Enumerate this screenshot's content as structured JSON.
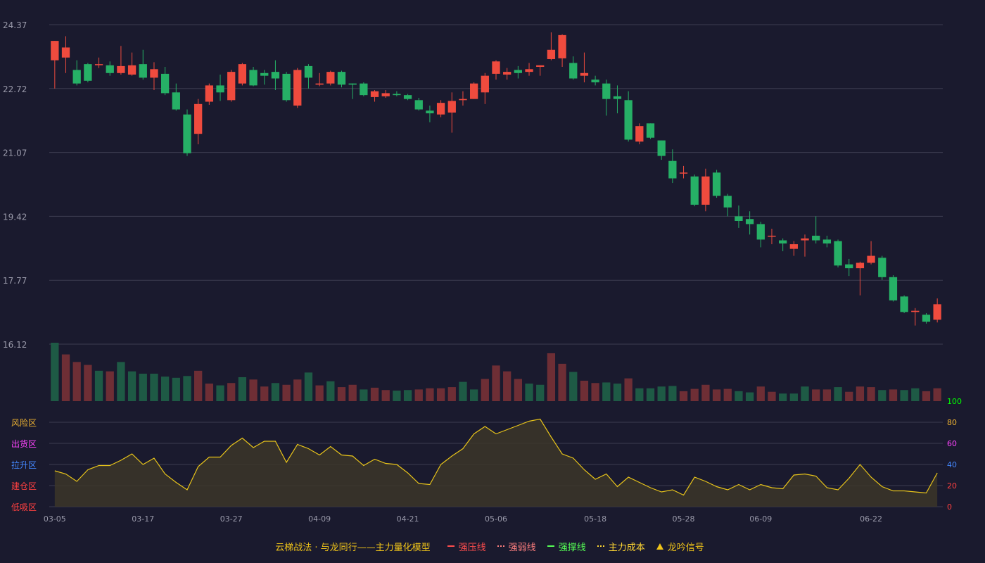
{
  "chart_data": {
    "type": "candlestick",
    "price_axis": {
      "ticks": [
        "24.37",
        "22.72",
        "21.07",
        "19.42",
        "17.77",
        "16.12"
      ],
      "range": [
        16.12,
        24.37
      ]
    },
    "x_ticks": [
      "03-05",
      "03-17",
      "03-27",
      "04-09",
      "04-21",
      "05-06",
      "05-18",
      "05-28",
      "06-09",
      "06-22"
    ],
    "dates": [
      "03-05",
      "03-06",
      "03-07",
      "03-10",
      "03-11",
      "03-12",
      "03-13",
      "03-14",
      "03-17",
      "03-18",
      "03-19",
      "03-20",
      "03-21",
      "03-24",
      "03-25",
      "03-26",
      "03-27",
      "03-28",
      "03-31",
      "04-01",
      "04-02",
      "04-03",
      "04-07",
      "04-08",
      "04-09",
      "04-10",
      "04-11",
      "04-14",
      "04-15",
      "04-16",
      "04-17",
      "04-18",
      "04-21",
      "04-22",
      "04-23",
      "04-24",
      "04-25",
      "04-28",
      "04-29",
      "04-30",
      "05-06",
      "05-07",
      "05-08",
      "05-09",
      "05-12",
      "05-13",
      "05-14",
      "05-15",
      "05-16",
      "05-18",
      "05-19",
      "05-20",
      "05-21",
      "05-22",
      "05-23",
      "05-26",
      "05-27",
      "05-28",
      "05-29",
      "05-30",
      "06-03",
      "06-04",
      "06-05",
      "06-06",
      "06-09",
      "06-10",
      "06-11",
      "06-12",
      "06-13",
      "06-16",
      "06-17",
      "06-18",
      "06-19",
      "06-20",
      "06-22",
      "06-23",
      "06-24",
      "06-25",
      "06-26",
      "06-27",
      "06-30"
    ],
    "ohlc": [
      [
        23.45,
        23.95,
        22.72,
        23.95
      ],
      [
        23.52,
        23.78,
        23.12,
        24.07
      ],
      [
        23.2,
        22.85,
        22.8,
        23.45
      ],
      [
        23.35,
        22.92,
        22.88,
        23.38
      ],
      [
        23.35,
        23.35,
        23.25,
        23.52
      ],
      [
        23.32,
        23.12,
        23.05,
        23.42
      ],
      [
        23.12,
        23.3,
        23.08,
        23.82
      ],
      [
        23.08,
        23.32,
        23.05,
        23.65
      ],
      [
        23.35,
        23.0,
        22.95,
        23.72
      ],
      [
        23.0,
        23.22,
        22.68,
        23.4
      ],
      [
        23.1,
        22.6,
        22.55,
        23.28
      ],
      [
        22.62,
        22.18,
        22.15,
        22.85
      ],
      [
        22.05,
        21.05,
        20.98,
        22.18
      ],
      [
        21.55,
        22.32,
        21.28,
        22.45
      ],
      [
        22.38,
        22.8,
        22.3,
        22.85
      ],
      [
        22.8,
        22.62,
        22.4,
        23.08
      ],
      [
        22.42,
        23.15,
        22.38,
        23.2
      ],
      [
        22.85,
        23.35,
        22.8,
        23.38
      ],
      [
        23.2,
        22.8,
        22.78,
        23.28
      ],
      [
        23.12,
        23.05,
        22.82,
        23.2
      ],
      [
        23.15,
        22.98,
        22.68,
        23.45
      ],
      [
        23.1,
        22.42,
        22.38,
        23.15
      ],
      [
        22.28,
        23.2,
        22.22,
        23.25
      ],
      [
        23.3,
        23.0,
        22.72,
        23.35
      ],
      [
        22.82,
        22.85,
        22.78,
        23.12
      ],
      [
        22.85,
        23.15,
        22.8,
        23.18
      ],
      [
        23.15,
        22.82,
        22.75,
        23.18
      ],
      [
        22.85,
        22.82,
        22.45,
        22.85
      ],
      [
        22.85,
        22.55,
        22.52,
        22.88
      ],
      [
        22.5,
        22.65,
        22.38,
        22.68
      ],
      [
        22.52,
        22.6,
        22.48,
        22.68
      ],
      [
        22.58,
        22.55,
        22.52,
        22.65
      ],
      [
        22.55,
        22.45,
        22.42,
        22.58
      ],
      [
        22.42,
        22.18,
        22.15,
        22.48
      ],
      [
        22.15,
        22.08,
        21.85,
        22.28
      ],
      [
        22.05,
        22.35,
        21.98,
        22.42
      ],
      [
        22.1,
        22.4,
        21.58,
        22.62
      ],
      [
        22.42,
        22.45,
        22.28,
        22.65
      ],
      [
        22.45,
        22.85,
        22.45,
        22.88
      ],
      [
        22.62,
        23.05,
        22.32,
        23.12
      ],
      [
        23.1,
        23.42,
        22.95,
        23.45
      ],
      [
        23.08,
        23.15,
        22.95,
        23.25
      ],
      [
        23.2,
        23.12,
        22.98,
        23.3
      ],
      [
        23.15,
        23.22,
        23.05,
        23.38
      ],
      [
        23.28,
        23.32,
        23.05,
        23.32
      ],
      [
        23.48,
        23.72,
        23.45,
        24.17
      ],
      [
        23.5,
        24.1,
        23.28,
        24.12
      ],
      [
        23.38,
        22.98,
        22.95,
        23.55
      ],
      [
        23.05,
        23.12,
        22.88,
        23.65
      ],
      [
        22.95,
        22.88,
        22.8,
        23.05
      ],
      [
        22.85,
        22.45,
        22.02,
        22.95
      ],
      [
        22.52,
        22.45,
        22.08,
        22.8
      ],
      [
        22.42,
        21.4,
        21.35,
        22.65
      ],
      [
        21.35,
        21.75,
        21.28,
        21.82
      ],
      [
        21.82,
        21.45,
        21.42,
        21.82
      ],
      [
        21.38,
        20.98,
        20.88,
        21.38
      ],
      [
        20.85,
        20.4,
        20.28,
        21.15
      ],
      [
        20.55,
        20.55,
        20.4,
        20.72
      ],
      [
        20.45,
        19.72,
        19.68,
        20.5
      ],
      [
        19.72,
        20.45,
        19.55,
        20.65
      ],
      [
        20.55,
        19.95,
        19.9,
        20.62
      ],
      [
        19.95,
        19.65,
        19.42,
        20.0
      ],
      [
        19.42,
        19.3,
        19.12,
        19.7
      ],
      [
        19.35,
        19.22,
        18.95,
        19.55
      ],
      [
        19.22,
        18.82,
        18.62,
        19.28
      ],
      [
        18.92,
        18.92,
        18.7,
        19.1
      ],
      [
        18.8,
        18.72,
        18.52,
        18.85
      ],
      [
        18.58,
        18.7,
        18.4,
        18.78
      ],
      [
        18.8,
        18.85,
        18.38,
        18.95
      ],
      [
        18.92,
        18.8,
        18.72,
        19.42
      ],
      [
        18.82,
        18.72,
        18.62,
        18.92
      ],
      [
        18.78,
        18.15,
        18.1,
        18.82
      ],
      [
        18.18,
        18.08,
        17.88,
        18.32
      ],
      [
        18.08,
        18.22,
        17.38,
        18.25
      ],
      [
        18.22,
        18.4,
        18.18,
        18.78
      ],
      [
        18.35,
        17.85,
        17.78,
        18.4
      ],
      [
        17.85,
        17.25,
        17.22,
        17.9
      ],
      [
        17.35,
        16.95,
        16.92,
        17.38
      ],
      [
        16.95,
        16.98,
        16.6,
        17.05
      ],
      [
        16.88,
        16.7,
        16.65,
        16.92
      ],
      [
        16.75,
        17.15,
        16.68,
        17.3
      ]
    ],
    "volume": [
      100,
      80,
      67,
      62,
      52,
      51,
      67,
      51,
      47,
      47,
      42,
      40,
      43,
      52,
      30,
      27,
      31,
      41,
      37,
      25,
      31,
      28,
      37,
      49,
      27,
      34,
      24,
      28,
      20,
      23,
      19,
      18,
      19,
      20,
      22,
      22,
      24,
      33,
      20,
      38,
      61,
      51,
      38,
      30,
      28,
      82,
      64,
      50,
      35,
      31,
      32,
      30,
      39,
      22,
      22,
      25,
      26,
      17,
      21,
      28,
      20,
      21,
      17,
      15,
      25,
      16,
      13,
      13,
      25,
      20,
      20,
      24,
      16,
      25,
      24,
      19,
      20,
      19,
      22,
      17,
      22
    ],
    "volume_color": [
      "up",
      "down",
      "down",
      "down",
      "up",
      "down",
      "up",
      "up",
      "up",
      "up",
      "up",
      "up",
      "up",
      "down",
      "down",
      "up",
      "down",
      "up",
      "down",
      "down",
      "up",
      "down",
      "down",
      "up",
      "down",
      "up",
      "down",
      "down",
      "up",
      "down",
      "down",
      "up",
      "up",
      "down",
      "down",
      "down",
      "down",
      "up",
      "up",
      "down",
      "down",
      "down",
      "down",
      "up",
      "up",
      "down",
      "down",
      "up",
      "down",
      "down",
      "up",
      "up",
      "down",
      "up",
      "up",
      "up",
      "up",
      "down",
      "down",
      "down",
      "down",
      "down",
      "up",
      "up",
      "down",
      "down",
      "up",
      "up",
      "up",
      "down",
      "down",
      "up",
      "down",
      "down",
      "down",
      "up",
      "down",
      "up",
      "up",
      "down",
      "down"
    ],
    "oscillator": [
      34,
      31,
      24,
      35,
      39,
      39,
      44,
      50,
      40,
      46,
      31,
      23,
      16,
      38,
      47,
      47,
      58,
      65,
      56,
      62,
      62,
      42,
      59,
      55,
      49,
      57,
      49,
      48,
      39,
      45,
      41,
      40,
      32,
      22,
      21,
      40,
      48,
      55,
      69,
      76,
      69,
      73,
      77,
      81,
      83,
      66,
      50,
      46,
      35,
      26,
      31,
      19,
      28,
      23,
      18,
      14,
      16,
      11,
      28,
      24,
      19,
      16,
      21,
      16,
      21,
      18,
      17,
      30,
      31,
      29,
      18,
      16,
      27,
      40,
      28,
      19,
      15,
      15,
      14,
      13,
      32
    ],
    "oscillator_axis": {
      "ticks": [
        "100",
        "80",
        "60",
        "40",
        "20",
        "0"
      ],
      "colors": [
        "#00ff00",
        "#f0b432",
        "#ff44ff",
        "#4488ff",
        "#ff4040",
        "#ff4040"
      ]
    },
    "zones": [
      {
        "label": "风险区",
        "color": "#f0b432"
      },
      {
        "label": "出货区",
        "color": "#ff44ff"
      },
      {
        "label": "拉升区",
        "color": "#4488ff"
      },
      {
        "label": "建仓区",
        "color": "#ff4040"
      },
      {
        "label": "低吸区",
        "color": "#ff4040"
      }
    ],
    "colors": {
      "up": "#ef4b3e",
      "down": "#26b066",
      "volume_up": "#6e2e35",
      "volume_down": "#1e5a45",
      "grid": "#3c3c50",
      "axis_text": "#9a9aaa",
      "oscillator_line": "#e8c41a",
      "oscillator_fill": "#3c3628"
    }
  },
  "legend": {
    "title": "云梯战法 · 与龙同行——主力量化模型",
    "items": [
      {
        "label": "强压线",
        "color": "#ff4d4d",
        "style": "solid"
      },
      {
        "label": "强弱线",
        "color": "#ff7f7f",
        "style": "dashed"
      },
      {
        "label": "强撑线",
        "color": "#55ff55",
        "style": "solid"
      },
      {
        "label": "主力成本",
        "color": "#ffd633",
        "style": "dashed"
      },
      {
        "label": "龙吟信号",
        "color": "#f0c419",
        "style": "triangle"
      }
    ]
  }
}
